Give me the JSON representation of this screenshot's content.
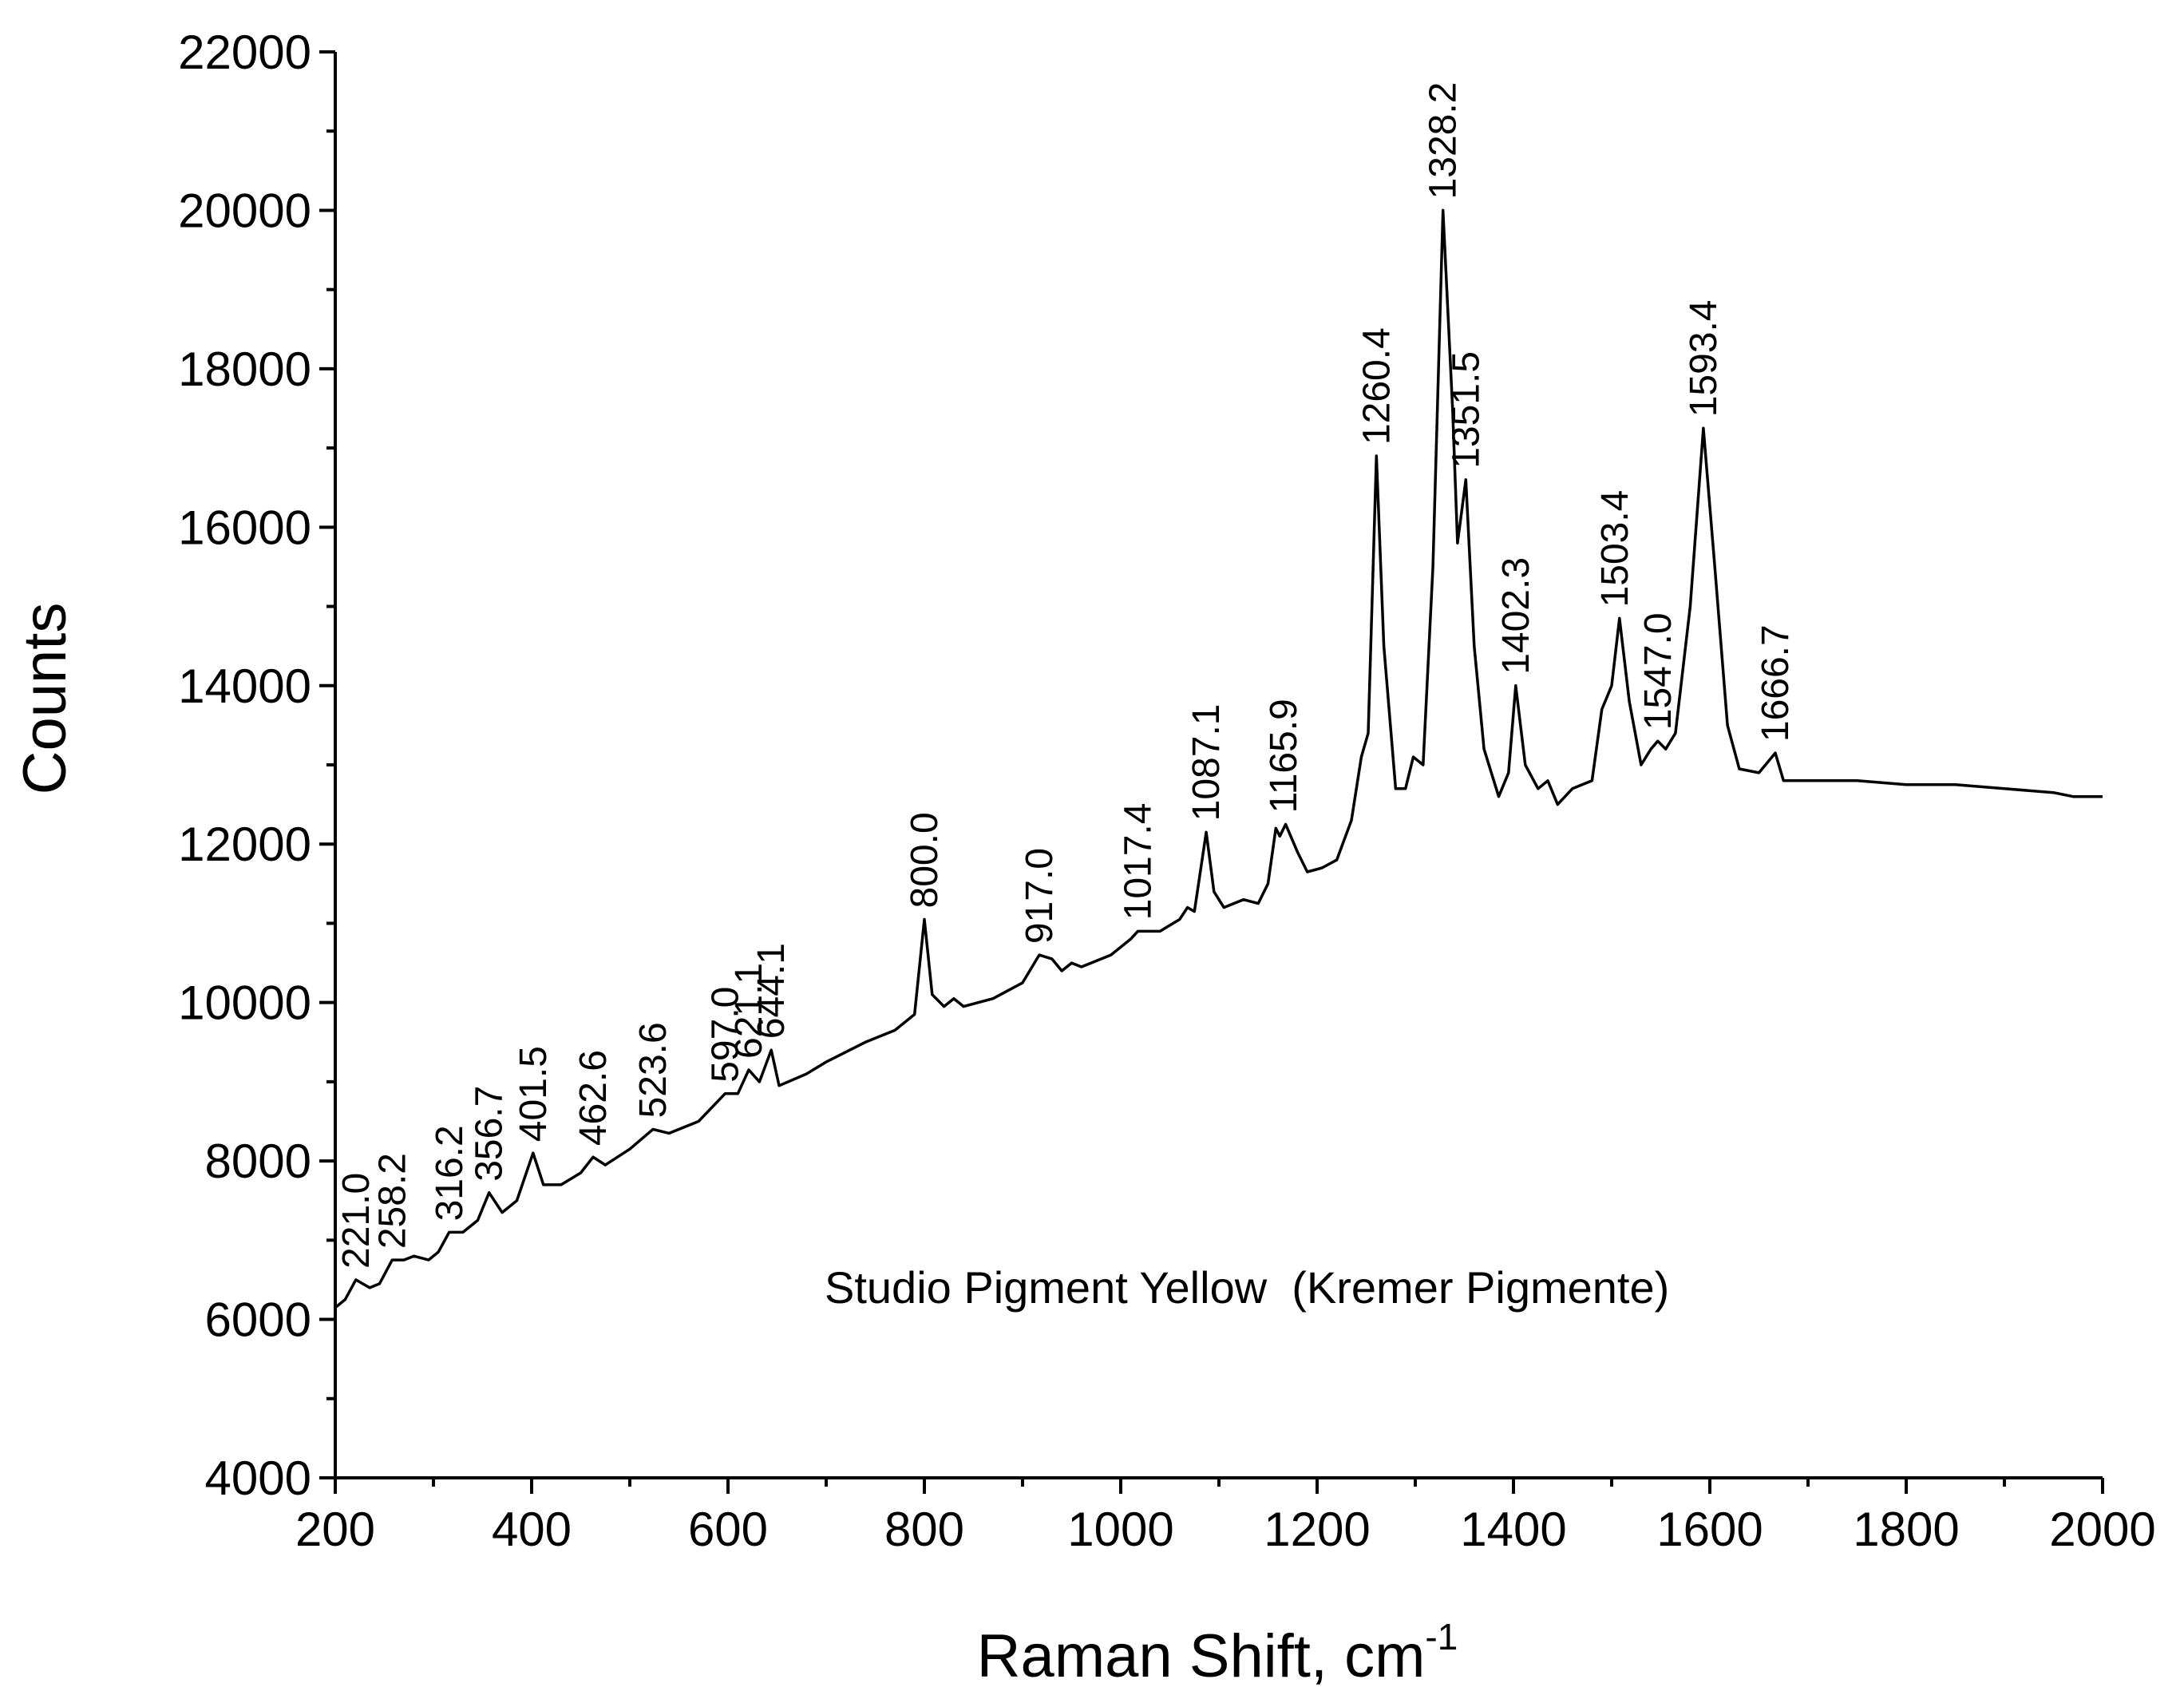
{
  "chart_data": {
    "type": "line",
    "x_label": "Raman Shift, cm",
    "x_label_superscript": "-1",
    "y_label": "Counts",
    "annotation": "Studio Pigment Yellow  (Kremer Pigmente)",
    "color": "#000000",
    "xlim": [
      200,
      2000
    ],
    "ylim": [
      4000,
      22000
    ],
    "xticks": [
      200,
      400,
      600,
      800,
      1000,
      1200,
      1400,
      1600,
      1800,
      2000
    ],
    "yticks": [
      4000,
      6000,
      8000,
      10000,
      12000,
      14000,
      16000,
      18000,
      20000,
      22000
    ],
    "xminorticks": [
      300,
      500,
      700,
      900,
      1100,
      1300,
      1500,
      1700,
      1900
    ],
    "yminorticks": [
      5000,
      7000,
      9000,
      11000,
      13000,
      15000,
      17000,
      19000,
      21000
    ],
    "x": [
      200,
      210,
      221,
      235,
      245,
      258,
      270,
      280,
      295,
      305,
      316,
      330,
      345,
      356.7,
      370,
      385,
      401.5,
      412,
      430,
      450,
      462.6,
      475,
      500,
      523.6,
      540,
      570,
      597,
      610,
      621.1,
      632,
      644.1,
      652,
      680,
      700,
      740,
      770,
      790,
      800,
      808,
      820,
      830,
      840,
      870,
      900,
      917,
      930,
      940,
      950,
      960,
      990,
      1010,
      1017.4,
      1040,
      1060,
      1068,
      1075,
      1087.1,
      1095,
      1105,
      1125,
      1140,
      1150,
      1158,
      1162,
      1168,
      1180,
      1190,
      1205,
      1220,
      1235,
      1245,
      1252,
      1260.4,
      1268,
      1280,
      1290,
      1298,
      1308,
      1318,
      1328.2,
      1338,
      1343,
      1351.5,
      1360,
      1370,
      1385,
      1395,
      1402.3,
      1412,
      1425,
      1435,
      1445,
      1460,
      1480,
      1490,
      1500,
      1508,
      1518,
      1530,
      1540,
      1547,
      1555,
      1565,
      1580,
      1593.4,
      1605,
      1618,
      1630,
      1650,
      1660,
      1666.7,
      1675,
      1700,
      1750,
      1800,
      1850,
      1900,
      1950,
      1970,
      2000
    ],
    "values": [
      6150,
      6250,
      6500,
      6400,
      6450,
      6750,
      6750,
      6800,
      6750,
      6850,
      7100,
      7100,
      7250,
      7600,
      7350,
      7500,
      8100,
      7700,
      7700,
      7850,
      8050,
      7950,
      8150,
      8400,
      8350,
      8500,
      8850,
      8850,
      9150,
      9000,
      9400,
      8950,
      9100,
      9250,
      9500,
      9650,
      9850,
      11050,
      10100,
      9950,
      10050,
      9950,
      10050,
      10250,
      10600,
      10550,
      10400,
      10500,
      10450,
      10600,
      10800,
      10900,
      10900,
      11050,
      11200,
      11150,
      12150,
      11400,
      11200,
      11300,
      11250,
      11500,
      12200,
      12100,
      12250,
      11900,
      11650,
      11700,
      11800,
      12300,
      13100,
      13400,
      16900,
      14500,
      12700,
      12700,
      13100,
      13000,
      15500,
      20000,
      17500,
      15800,
      16600,
      14500,
      13200,
      12600,
      12900,
      14000,
      13000,
      12700,
      12800,
      12500,
      12700,
      12800,
      13700,
      14000,
      14850,
      13800,
      13000,
      13200,
      13300,
      13200,
      13400,
      15000,
      17250,
      15500,
      13500,
      12950,
      12900,
      13050,
      13150,
      12800,
      12800,
      12800,
      12750,
      12750,
      12700,
      12650,
      12600,
      12600
    ],
    "peaks": [
      {
        "x": 221.0,
        "y": 6500,
        "label": "221.0"
      },
      {
        "x": 258.2,
        "y": 6750,
        "label": "258.2"
      },
      {
        "x": 316.2,
        "y": 7100,
        "label": "316.2"
      },
      {
        "x": 356.7,
        "y": 7600,
        "label": "356.7"
      },
      {
        "x": 401.5,
        "y": 8100,
        "label": "401.5"
      },
      {
        "x": 462.6,
        "y": 8050,
        "label": "462.6"
      },
      {
        "x": 523.6,
        "y": 8400,
        "label": "523.6"
      },
      {
        "x": 597.0,
        "y": 8850,
        "label": "597.0"
      },
      {
        "x": 621.1,
        "y": 9150,
        "label": "621.1"
      },
      {
        "x": 644.1,
        "y": 9400,
        "label": "644.1"
      },
      {
        "x": 800.0,
        "y": 11050,
        "label": "800.0"
      },
      {
        "x": 917.0,
        "y": 10600,
        "label": "917.0"
      },
      {
        "x": 1017.4,
        "y": 10900,
        "label": "1017.4"
      },
      {
        "x": 1087.1,
        "y": 12150,
        "label": "1087.1"
      },
      {
        "x": 1165.9,
        "y": 12250,
        "label": "1165.9"
      },
      {
        "x": 1260.4,
        "y": 16900,
        "label": "1260.4"
      },
      {
        "x": 1328.2,
        "y": 20000,
        "label": "1328.2"
      },
      {
        "x": 1351.5,
        "y": 16600,
        "label": "1351.5"
      },
      {
        "x": 1402.3,
        "y": 14000,
        "label": "1402.3"
      },
      {
        "x": 1503.4,
        "y": 14850,
        "label": "1503.4"
      },
      {
        "x": 1547.0,
        "y": 13300,
        "label": "1547.0"
      },
      {
        "x": 1593.4,
        "y": 17250,
        "label": "1593.4"
      },
      {
        "x": 1666.7,
        "y": 13150,
        "label": "1666.7"
      }
    ]
  }
}
